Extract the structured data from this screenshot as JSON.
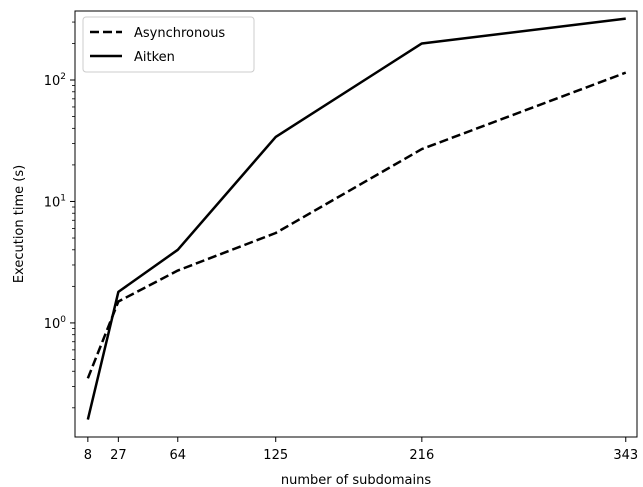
{
  "chart_data": {
    "type": "line",
    "xlabel": "number of subdomains",
    "ylabel": "Execution time (s)",
    "x": [
      8,
      27,
      64,
      125,
      216,
      343
    ],
    "x_tick_labels": [
      "8",
      "27",
      "64",
      "125",
      "216",
      "343"
    ],
    "y_scale": "log",
    "y_tick_labels": [
      {
        "value": 1,
        "base": "10",
        "exp": "0"
      },
      {
        "value": 10,
        "base": "10",
        "exp": "1"
      },
      {
        "value": 100,
        "base": "10",
        "exp": "2"
      }
    ],
    "xlim": [
      0,
      350
    ],
    "ylim": [
      0.115,
      370
    ],
    "grid": false,
    "legend_position": "top-left",
    "series": [
      {
        "name": "Asynchronous",
        "style": "dashed",
        "color": "#000000",
        "values": [
          0.35,
          1.5,
          2.7,
          5.5,
          27,
          115
        ]
      },
      {
        "name": "Aitken",
        "style": "solid",
        "color": "#000000",
        "values": [
          0.16,
          1.8,
          4.0,
          34,
          200,
          320
        ]
      }
    ]
  }
}
